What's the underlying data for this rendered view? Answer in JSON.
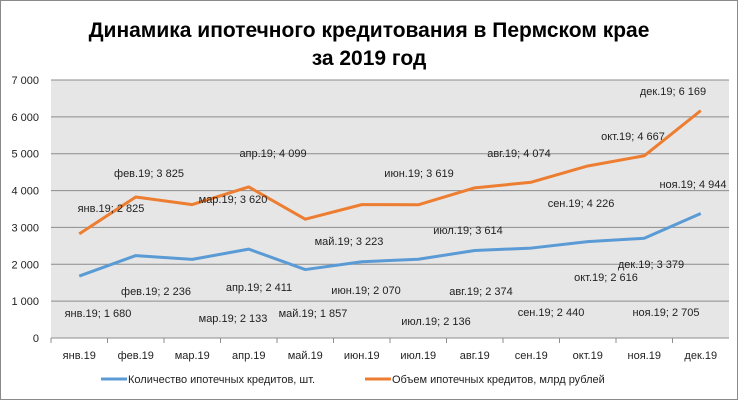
{
  "chart_data": {
    "type": "line",
    "title": [
      "Динамика ипотечного кредитования в Пермском крае",
      "за 2019 год"
    ],
    "categories": [
      "янв.19",
      "фев.19",
      "мар.19",
      "апр.19",
      "май.19",
      "июн.19",
      "июл.19",
      "авг.19",
      "сен.19",
      "окт.19",
      "ноя.19",
      "дек.19"
    ],
    "ylim": [
      0,
      7000
    ],
    "yticks": [
      "0",
      "1 000",
      "2 000",
      "3 000",
      "4 000",
      "5 000",
      "6 000",
      "7 000"
    ],
    "grid": true,
    "legend_position": "bottom",
    "series": [
      {
        "name": "Количество ипотечных кредитов, шт.",
        "color": "#5b9bd5",
        "values": [
          1680,
          2236,
          2133,
          2411,
          1857,
          2070,
          2136,
          2374,
          2440,
          2616,
          2705,
          3379
        ],
        "labels": [
          "янв.19; 1 680",
          "фев.19; 2 236",
          "мар.19; 2 133",
          "апр.19; 2 411",
          "май.19; 1 857",
          "июн.19; 2 070",
          "июл.19; 2 136",
          "авг.19; 2 374",
          "сен.19; 2 440",
          "окт.19; 2 616",
          "ноя.19; 2 705",
          "дек.19; 3 379"
        ]
      },
      {
        "name": "Объем ипотечных кредитов, млрд рублей",
        "color": "#ed7d31",
        "values": [
          2825,
          3825,
          3620,
          4099,
          3223,
          3619,
          3614,
          4074,
          4226,
          4667,
          4944,
          6169
        ],
        "labels": [
          "янв.19; 2 825",
          "фев.19; 3 825",
          "мар.19; 3 620",
          "апр.19; 4 099",
          "май.19; 3 223",
          "июн.19; 3 619",
          "июл.19; 3 614",
          "авг.19; 4 074",
          "сен.19; 4 226",
          "окт.19; 4 667",
          "ноя.19; 4 944",
          "дек.19; 6 169"
        ]
      }
    ],
    "plot_background": "#e6e6e6"
  }
}
